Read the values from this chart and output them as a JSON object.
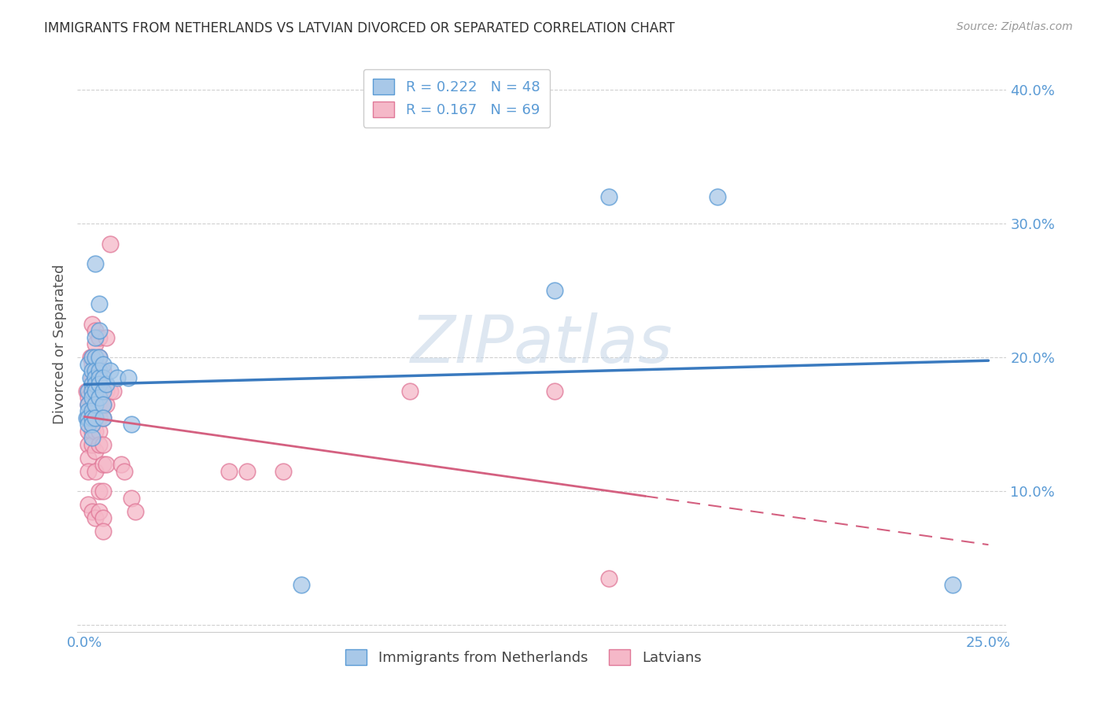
{
  "title": "IMMIGRANTS FROM NETHERLANDS VS LATVIAN DIVORCED OR SEPARATED CORRELATION CHART",
  "source": "Source: ZipAtlas.com",
  "ylabel": "Divorced or Separated",
  "xlim": [
    -0.002,
    0.255
  ],
  "ylim": [
    -0.005,
    0.425
  ],
  "xticks": [
    0.0,
    0.05,
    0.1,
    0.15,
    0.2,
    0.25
  ],
  "xtick_labels": [
    "0.0%",
    "",
    "",
    "",
    "",
    "25.0%"
  ],
  "yticks": [
    0.0,
    0.1,
    0.2,
    0.3,
    0.4
  ],
  "ytick_labels": [
    "",
    "10.0%",
    "20.0%",
    "30.0%",
    "40.0%"
  ],
  "blue_fill": "#a8c8e8",
  "blue_edge": "#5b9bd5",
  "pink_fill": "#f5b8c8",
  "pink_edge": "#e07898",
  "blue_line_color": "#3a7abf",
  "pink_line_color": "#d46080",
  "blue_scatter": [
    [
      0.0005,
      0.155
    ],
    [
      0.001,
      0.195
    ],
    [
      0.001,
      0.175
    ],
    [
      0.001,
      0.165
    ],
    [
      0.001,
      0.16
    ],
    [
      0.001,
      0.155
    ],
    [
      0.001,
      0.15
    ],
    [
      0.0015,
      0.185
    ],
    [
      0.002,
      0.2
    ],
    [
      0.002,
      0.19
    ],
    [
      0.002,
      0.18
    ],
    [
      0.002,
      0.175
    ],
    [
      0.002,
      0.17
    ],
    [
      0.002,
      0.16
    ],
    [
      0.002,
      0.155
    ],
    [
      0.002,
      0.15
    ],
    [
      0.002,
      0.14
    ],
    [
      0.003,
      0.27
    ],
    [
      0.003,
      0.215
    ],
    [
      0.003,
      0.2
    ],
    [
      0.003,
      0.19
    ],
    [
      0.003,
      0.185
    ],
    [
      0.003,
      0.18
    ],
    [
      0.003,
      0.175
    ],
    [
      0.003,
      0.165
    ],
    [
      0.003,
      0.155
    ],
    [
      0.004,
      0.24
    ],
    [
      0.004,
      0.22
    ],
    [
      0.004,
      0.2
    ],
    [
      0.004,
      0.19
    ],
    [
      0.004,
      0.185
    ],
    [
      0.004,
      0.18
    ],
    [
      0.004,
      0.17
    ],
    [
      0.005,
      0.195
    ],
    [
      0.005,
      0.185
    ],
    [
      0.005,
      0.175
    ],
    [
      0.005,
      0.165
    ],
    [
      0.005,
      0.155
    ],
    [
      0.006,
      0.18
    ],
    [
      0.007,
      0.19
    ],
    [
      0.009,
      0.185
    ],
    [
      0.012,
      0.185
    ],
    [
      0.013,
      0.15
    ],
    [
      0.06,
      0.03
    ],
    [
      0.13,
      0.25
    ],
    [
      0.145,
      0.32
    ],
    [
      0.175,
      0.32
    ],
    [
      0.24,
      0.03
    ]
  ],
  "pink_scatter": [
    [
      0.0005,
      0.175
    ],
    [
      0.001,
      0.175
    ],
    [
      0.001,
      0.17
    ],
    [
      0.001,
      0.165
    ],
    [
      0.001,
      0.155
    ],
    [
      0.001,
      0.145
    ],
    [
      0.001,
      0.135
    ],
    [
      0.001,
      0.125
    ],
    [
      0.001,
      0.115
    ],
    [
      0.001,
      0.09
    ],
    [
      0.0015,
      0.2
    ],
    [
      0.002,
      0.225
    ],
    [
      0.002,
      0.2
    ],
    [
      0.002,
      0.195
    ],
    [
      0.002,
      0.185
    ],
    [
      0.002,
      0.175
    ],
    [
      0.002,
      0.165
    ],
    [
      0.002,
      0.16
    ],
    [
      0.002,
      0.155
    ],
    [
      0.002,
      0.145
    ],
    [
      0.002,
      0.135
    ],
    [
      0.002,
      0.085
    ],
    [
      0.003,
      0.22
    ],
    [
      0.003,
      0.21
    ],
    [
      0.003,
      0.195
    ],
    [
      0.003,
      0.185
    ],
    [
      0.003,
      0.175
    ],
    [
      0.003,
      0.165
    ],
    [
      0.003,
      0.155
    ],
    [
      0.003,
      0.145
    ],
    [
      0.003,
      0.13
    ],
    [
      0.003,
      0.115
    ],
    [
      0.003,
      0.08
    ],
    [
      0.004,
      0.215
    ],
    [
      0.004,
      0.2
    ],
    [
      0.004,
      0.185
    ],
    [
      0.004,
      0.175
    ],
    [
      0.004,
      0.165
    ],
    [
      0.004,
      0.155
    ],
    [
      0.004,
      0.145
    ],
    [
      0.004,
      0.135
    ],
    [
      0.004,
      0.1
    ],
    [
      0.004,
      0.085
    ],
    [
      0.005,
      0.19
    ],
    [
      0.005,
      0.175
    ],
    [
      0.005,
      0.165
    ],
    [
      0.005,
      0.155
    ],
    [
      0.005,
      0.135
    ],
    [
      0.005,
      0.12
    ],
    [
      0.005,
      0.1
    ],
    [
      0.005,
      0.08
    ],
    [
      0.005,
      0.07
    ],
    [
      0.006,
      0.215
    ],
    [
      0.006,
      0.175
    ],
    [
      0.006,
      0.165
    ],
    [
      0.006,
      0.12
    ],
    [
      0.007,
      0.285
    ],
    [
      0.007,
      0.175
    ],
    [
      0.008,
      0.175
    ],
    [
      0.01,
      0.12
    ],
    [
      0.011,
      0.115
    ],
    [
      0.013,
      0.095
    ],
    [
      0.014,
      0.085
    ],
    [
      0.04,
      0.115
    ],
    [
      0.045,
      0.115
    ],
    [
      0.055,
      0.115
    ],
    [
      0.09,
      0.175
    ],
    [
      0.13,
      0.175
    ],
    [
      0.145,
      0.035
    ]
  ],
  "blue_R": 0.222,
  "blue_N": 48,
  "pink_R": 0.167,
  "pink_N": 69,
  "watermark_zip": "ZIP",
  "watermark_atlas": "atlas",
  "background_color": "#ffffff",
  "grid_color": "#d0d0d0",
  "tick_color": "#5b9bd5"
}
